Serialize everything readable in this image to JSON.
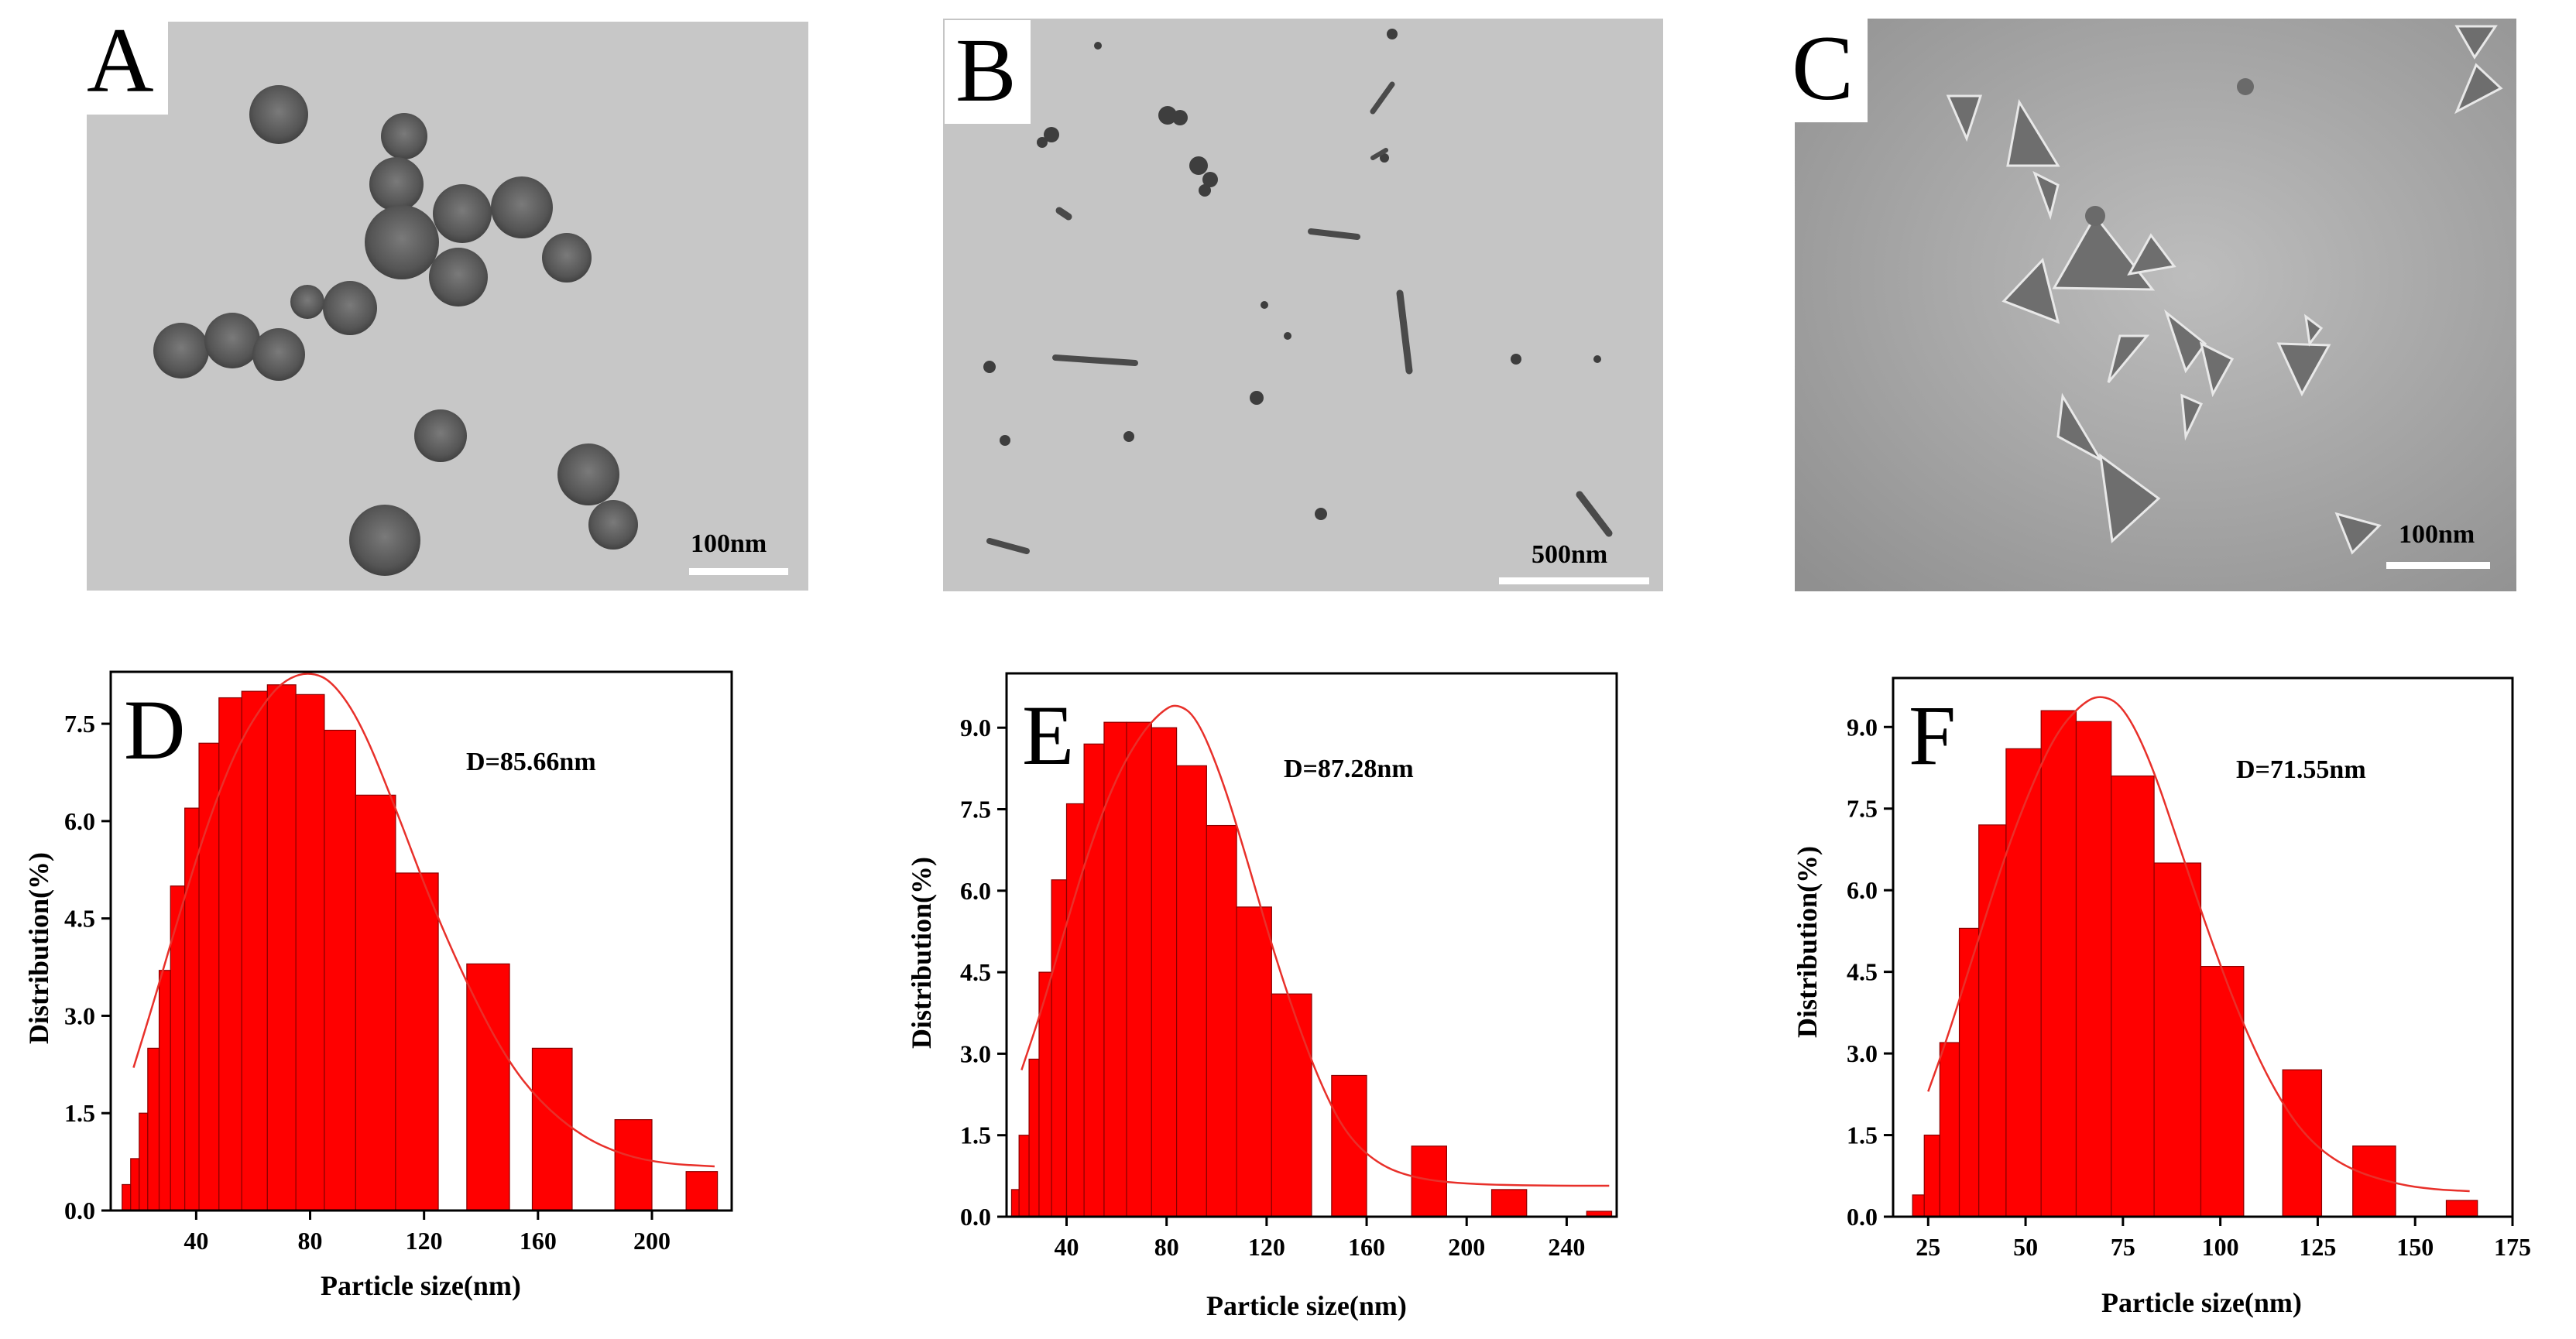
{
  "tem_panels": [
    {
      "letter": "A",
      "scale_label": "100nm"
    },
    {
      "letter": "B",
      "scale_label": "500nm"
    },
    {
      "letter": "C",
      "scale_label": "100nm"
    }
  ],
  "colors": {
    "bar": "#ff0000",
    "curve": "#e8302a",
    "axis": "#000000",
    "tem_bg_A": "#c7c7c7",
    "tem_bg_B": "#c5c5c5",
    "tem_bg_C": "#b4b4b4"
  },
  "chart_data": [
    {
      "panel": "D",
      "type": "bar",
      "annotation": "D=85.66nm",
      "xlabel": "Particle size(nm)",
      "ylabel": "Distribution(%)",
      "xlim": [
        10,
        228
      ],
      "ylim": [
        0,
        8.3
      ],
      "xticks": [
        40,
        80,
        120,
        160,
        200
      ],
      "yticks": [
        0.0,
        1.5,
        3.0,
        4.5,
        6.0,
        7.5
      ],
      "ytick_labels": [
        "0.0",
        "1.5",
        "3.0",
        "4.5",
        "6.0",
        "7.5"
      ],
      "bins": [
        [
          14,
          17,
          0.4
        ],
        [
          17,
          20,
          0.8
        ],
        [
          20,
          23,
          1.5
        ],
        [
          23,
          27,
          2.5
        ],
        [
          27,
          31,
          3.7
        ],
        [
          31,
          36,
          5.0
        ],
        [
          36,
          41,
          6.2
        ],
        [
          41,
          48,
          7.2
        ],
        [
          48,
          56,
          7.9
        ],
        [
          56,
          65,
          8.0
        ],
        [
          65,
          75,
          8.1
        ],
        [
          75,
          85,
          7.95
        ],
        [
          85,
          96,
          7.4
        ],
        [
          96,
          110,
          6.4
        ],
        [
          110,
          125,
          5.2
        ],
        [
          135,
          150,
          3.8
        ],
        [
          158,
          172,
          2.5
        ],
        [
          187,
          200,
          1.4
        ],
        [
          212,
          223,
          0.6
        ]
      ],
      "fit_curve": [
        [
          18,
          2.2
        ],
        [
          25,
          3.2
        ],
        [
          35,
          4.7
        ],
        [
          45,
          6.1
        ],
        [
          55,
          7.2
        ],
        [
          65,
          7.9
        ],
        [
          72,
          8.2
        ],
        [
          80,
          8.3
        ],
        [
          88,
          8.15
        ],
        [
          98,
          7.5
        ],
        [
          110,
          6.2
        ],
        [
          122,
          4.8
        ],
        [
          135,
          3.5
        ],
        [
          148,
          2.4
        ],
        [
          160,
          1.7
        ],
        [
          175,
          1.15
        ],
        [
          190,
          0.85
        ],
        [
          205,
          0.72
        ],
        [
          222,
          0.68
        ]
      ]
    },
    {
      "panel": "E",
      "type": "bar",
      "annotation": "D=87.28nm",
      "xlabel": "Particle size(nm)",
      "ylabel": "Distribution(%)",
      "xlim": [
        16,
        260
      ],
      "ylim": [
        0,
        10
      ],
      "xticks": [
        40,
        80,
        120,
        160,
        200,
        240
      ],
      "yticks": [
        0.0,
        1.5,
        3.0,
        4.5,
        6.0,
        7.5,
        9.0
      ],
      "ytick_labels": [
        "0.0",
        "1.5",
        "3.0",
        "4.5",
        "6.0",
        "7.5",
        "9.0"
      ],
      "bins": [
        [
          18,
          21,
          0.5
        ],
        [
          21,
          25,
          1.5
        ],
        [
          25,
          29,
          2.9
        ],
        [
          29,
          34,
          4.5
        ],
        [
          34,
          40,
          6.2
        ],
        [
          40,
          47,
          7.6
        ],
        [
          47,
          55,
          8.7
        ],
        [
          55,
          64,
          9.1
        ],
        [
          64,
          74,
          9.1
        ],
        [
          74,
          84,
          9.0
        ],
        [
          84,
          96,
          8.3
        ],
        [
          96,
          108,
          7.2
        ],
        [
          108,
          122,
          5.7
        ],
        [
          122,
          138,
          4.1
        ],
        [
          146,
          160,
          2.6
        ],
        [
          178,
          192,
          1.3
        ],
        [
          210,
          224,
          0.5
        ],
        [
          248,
          258,
          0.1
        ]
      ],
      "fit_curve": [
        [
          22,
          2.7
        ],
        [
          30,
          3.8
        ],
        [
          40,
          5.4
        ],
        [
          50,
          6.9
        ],
        [
          60,
          8.1
        ],
        [
          70,
          8.9
        ],
        [
          78,
          9.3
        ],
        [
          84,
          9.45
        ],
        [
          92,
          9.2
        ],
        [
          102,
          8.1
        ],
        [
          112,
          6.6
        ],
        [
          122,
          5.0
        ],
        [
          132,
          3.6
        ],
        [
          142,
          2.4
        ],
        [
          152,
          1.5
        ],
        [
          165,
          0.95
        ],
        [
          180,
          0.7
        ],
        [
          200,
          0.6
        ],
        [
          230,
          0.57
        ],
        [
          257,
          0.57
        ]
      ]
    },
    {
      "panel": "F",
      "type": "bar",
      "annotation": "D=71.55nm",
      "xlabel": "Particle size(nm)",
      "ylabel": "Distribution(%)",
      "xlim": [
        16,
        175
      ],
      "ylim": [
        0,
        9.9
      ],
      "xticks": [
        25,
        50,
        75,
        100,
        125,
        150,
        175
      ],
      "yticks": [
        0.0,
        1.5,
        3.0,
        4.5,
        6.0,
        7.5,
        9.0
      ],
      "ytick_labels": [
        "0.0",
        "1.5",
        "3.0",
        "4.5",
        "6.0",
        "7.5",
        "9.0"
      ],
      "bins": [
        [
          21,
          24,
          0.4
        ],
        [
          24,
          28,
          1.5
        ],
        [
          28,
          33,
          3.2
        ],
        [
          33,
          38,
          5.3
        ],
        [
          38,
          45,
          7.2
        ],
        [
          45,
          54,
          8.6
        ],
        [
          54,
          63,
          9.3
        ],
        [
          63,
          72,
          9.1
        ],
        [
          72,
          83,
          8.1
        ],
        [
          83,
          95,
          6.5
        ],
        [
          95,
          106,
          4.6
        ],
        [
          116,
          126,
          2.7
        ],
        [
          134,
          145,
          1.3
        ],
        [
          158,
          166,
          0.3
        ]
      ],
      "fit_curve": [
        [
          25,
          2.3
        ],
        [
          30,
          3.3
        ],
        [
          37,
          4.9
        ],
        [
          45,
          6.7
        ],
        [
          52,
          8.0
        ],
        [
          58,
          8.9
        ],
        [
          64,
          9.4
        ],
        [
          69,
          9.6
        ],
        [
          75,
          9.4
        ],
        [
          82,
          8.4
        ],
        [
          90,
          6.7
        ],
        [
          98,
          5.0
        ],
        [
          106,
          3.5
        ],
        [
          114,
          2.3
        ],
        [
          122,
          1.45
        ],
        [
          132,
          0.9
        ],
        [
          145,
          0.6
        ],
        [
          155,
          0.5
        ],
        [
          164,
          0.47
        ]
      ]
    }
  ]
}
